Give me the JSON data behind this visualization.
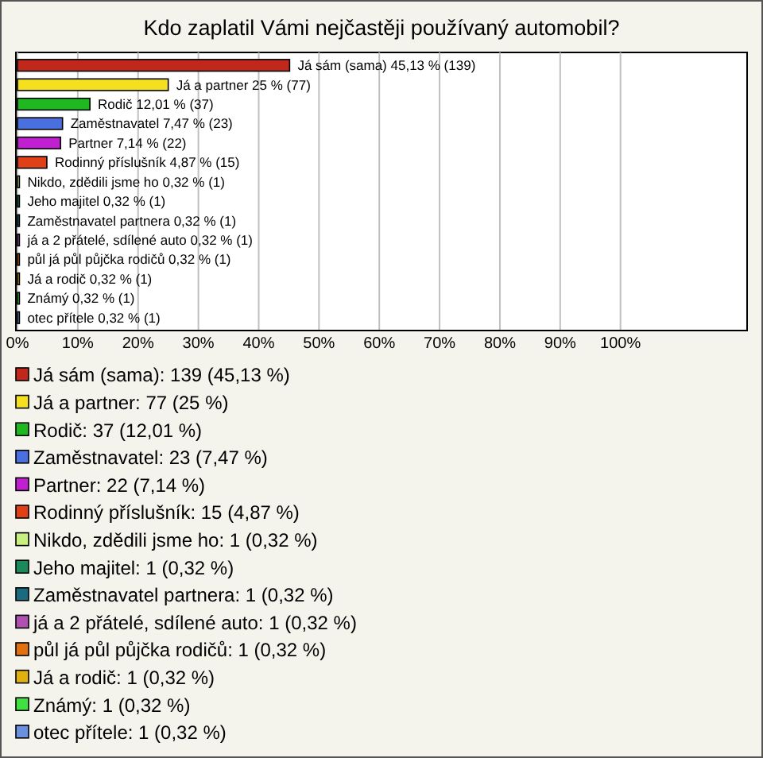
{
  "chart_data": {
    "type": "bar",
    "orientation": "horizontal",
    "title": "Kdo zaplatil Vámi nejčastěji používaný automobil?",
    "categories": [
      "Já sám (sama)",
      "Já a partner",
      "Rodič",
      "Zaměstnavatel",
      "Partner",
      "Rodinný příslušník",
      "Nikdo, zdědili jsme ho",
      "Jeho majitel",
      "Zaměstnavatel partnera",
      "já a 2 přátelé, sdílené auto",
      "půl já půl půjčka rodičů",
      "Já a rodič",
      "Známý",
      "otec přítele"
    ],
    "values": [
      45.13,
      25,
      12.01,
      7.47,
      7.14,
      4.87,
      0.32,
      0.32,
      0.32,
      0.32,
      0.32,
      0.32,
      0.32,
      0.32
    ],
    "value_labels": [
      "45,13 % (139)",
      "25 % (77)",
      "12,01 % (37)",
      "7,47 % (23)",
      "7,14 % (22)",
      "4,87 % (15)",
      "0,32 % (1)",
      "0,32 % (1)",
      "0,32 % (1)",
      "0,32 % (1)",
      "0,32 % (1)",
      "0,32 % (1)",
      "0,32 % (1)",
      "0,32 % (1)"
    ],
    "colors": [
      "#c0281c",
      "#f5e020",
      "#20b820",
      "#4a70e0",
      "#c020d0",
      "#e04018",
      "#c8f080",
      "#1a8a5a",
      "#1a6a80",
      "#b050b0",
      "#e07010",
      "#e0b010",
      "#40e040",
      "#6a90e0"
    ],
    "xlim": [
      0,
      121
    ],
    "xticks": [
      {
        "value": 0,
        "label": "0%"
      },
      {
        "value": 10,
        "label": "10%"
      },
      {
        "value": 20,
        "label": "20%"
      },
      {
        "value": 30,
        "label": "30%"
      },
      {
        "value": 40,
        "label": "40%"
      },
      {
        "value": 50,
        "label": "50%"
      },
      {
        "value": 60,
        "label": "60%"
      },
      {
        "value": 70,
        "label": "70%"
      },
      {
        "value": 80,
        "label": "80%"
      },
      {
        "value": 90,
        "label": "90%"
      },
      {
        "value": 100,
        "label": "100%"
      }
    ],
    "grid": "x",
    "annotations": [
      "Já sám (sama): 139 (45,13 %)",
      "Já a partner: 77 (25 %)",
      "Rodič: 37 (12,01 %)",
      "Zaměstnavatel: 23 (7,47 %)",
      "Partner: 22 (7,14 %)",
      "Rodinný příslušník: 15 (4,87 %)",
      "Nikdo, zdědili jsme ho: 1 (0,32 %)",
      "Jeho majitel: 1 (0,32 %)",
      "Zaměstnavatel partnera: 1 (0,32 %)",
      "já a 2 přátelé, sdílené auto: 1 (0,32 %)",
      "půl já půl půjčka rodičů: 1 (0,32 %)",
      "Já a rodič: 1 (0,32 %)",
      "Známý: 1 (0,32 %)",
      "otec přítele: 1 (0,32 %)"
    ]
  }
}
